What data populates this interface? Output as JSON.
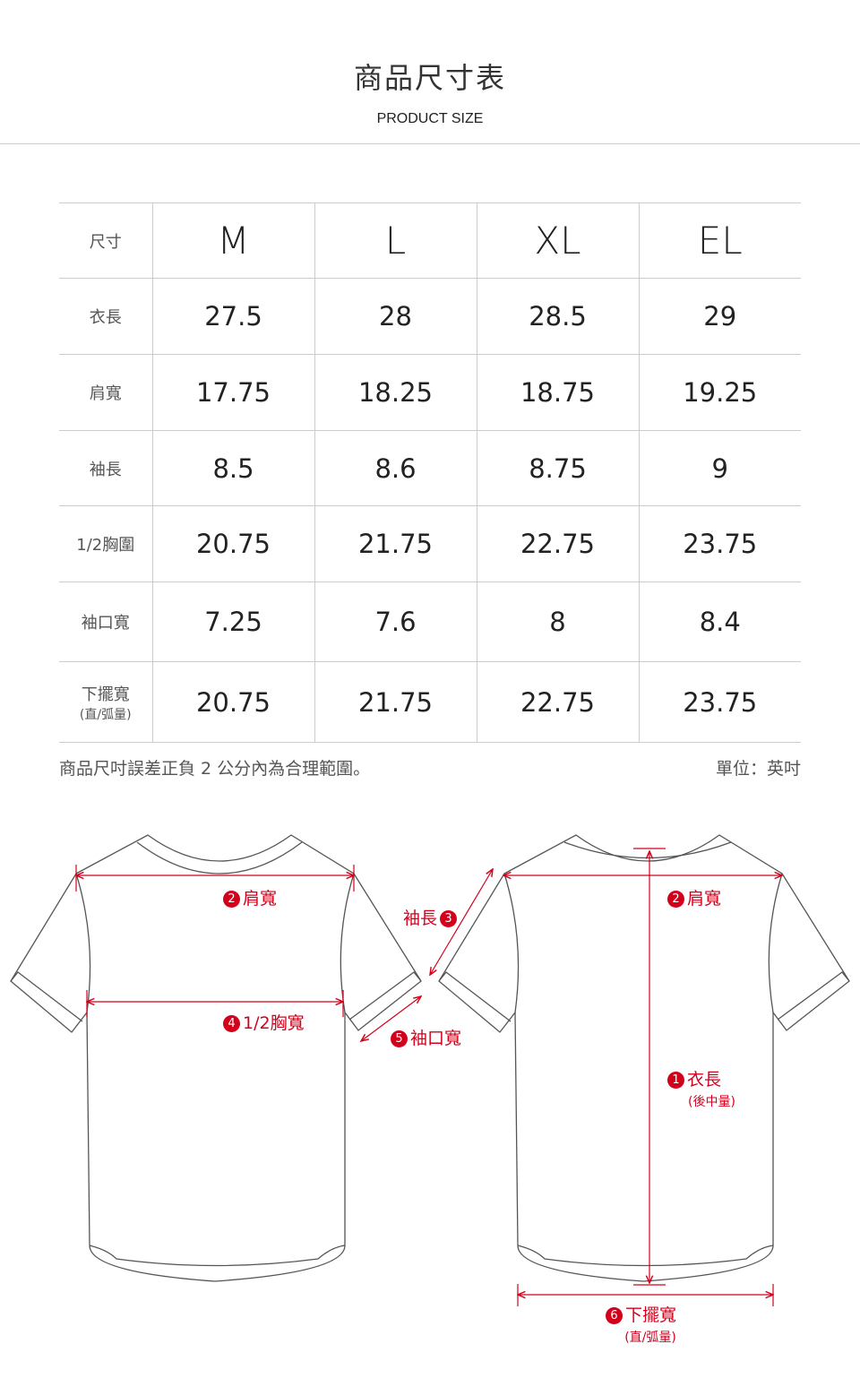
{
  "header": {
    "title": "商品尺寸表",
    "subtitle": "PRODUCT SIZE"
  },
  "table": {
    "size_label": "尺寸",
    "sizes": [
      "M",
      "L",
      "XL",
      "EL"
    ],
    "rows": [
      {
        "label": "衣長",
        "values": [
          "27.5",
          "28",
          "28.5",
          "29"
        ]
      },
      {
        "label": "肩寬",
        "values": [
          "17.75",
          "18.25",
          "18.75",
          "19.25"
        ]
      },
      {
        "label": "袖長",
        "values": [
          "8.5",
          "8.6",
          "8.75",
          "9"
        ]
      },
      {
        "label": "1/2胸圍",
        "values": [
          "20.75",
          "21.75",
          "22.75",
          "23.75"
        ]
      },
      {
        "label": "袖口寬",
        "values": [
          "7.25",
          "7.6",
          "8",
          "8.4"
        ]
      },
      {
        "label": "下擺寬",
        "sublabel": "(直/弧量)",
        "values": [
          "20.75",
          "21.75",
          "22.75",
          "23.75"
        ]
      }
    ]
  },
  "footer": {
    "note": "商品尺吋誤差正負 2 公分內為合理範圍。",
    "unit": "單位：英吋"
  },
  "diagram": {
    "accent_color": "#d3001c",
    "labels": {
      "shoulder_back": {
        "num": "2",
        "text": "肩寬"
      },
      "chest": {
        "num": "4",
        "text": "1/2胸寬"
      },
      "sleeve_length": {
        "num": "3",
        "text": "袖長"
      },
      "cuff": {
        "num": "5",
        "text": "袖口寬"
      },
      "shoulder_front": {
        "num": "2",
        "text": "肩寬"
      },
      "length": {
        "num": "1",
        "text": "衣長",
        "sub": "(後中量)"
      },
      "hem": {
        "num": "6",
        "text": "下擺寬",
        "sub": "(直/弧量)"
      }
    }
  }
}
